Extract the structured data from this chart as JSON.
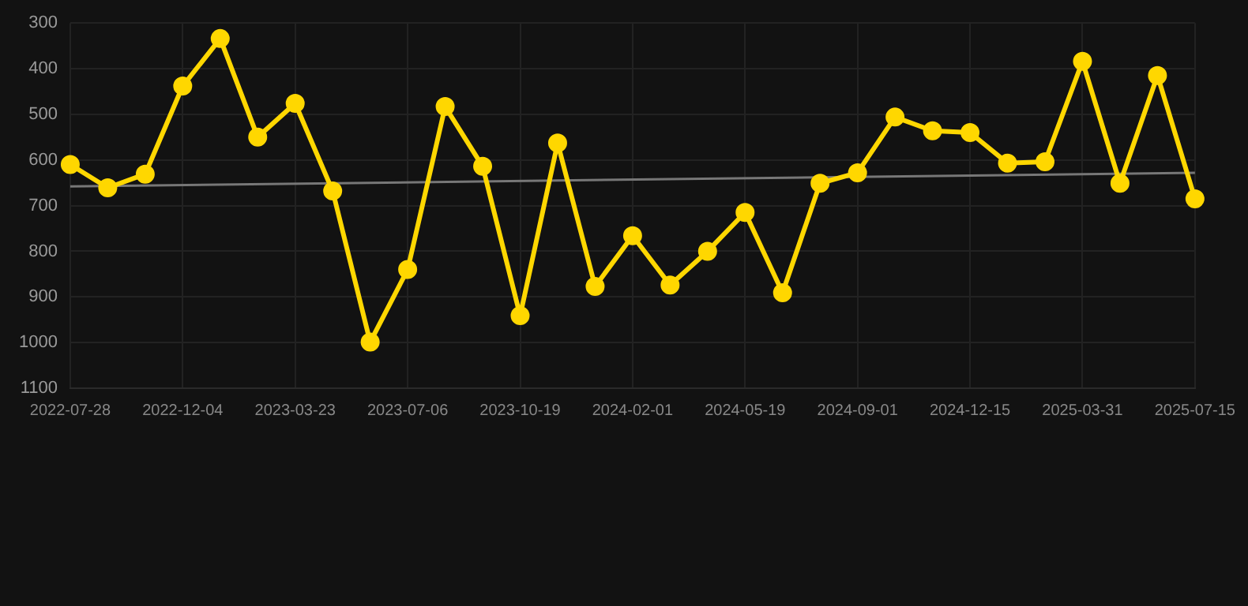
{
  "chart_data": {
    "type": "line",
    "categories": [
      "2022-07-28",
      null,
      null,
      "2022-12-04",
      null,
      null,
      "2023-03-23",
      null,
      null,
      "2023-07-06",
      null,
      null,
      "2023-10-19",
      null,
      null,
      "2024-02-01",
      null,
      null,
      "2024-05-19",
      null,
      null,
      "2024-09-01",
      null,
      null,
      "2024-12-15",
      null,
      null,
      "2025-03-31",
      null,
      null,
      "2025-07-15"
    ],
    "series": [
      {
        "color": "#ffd700",
        "values": [
          610,
          661,
          631,
          438,
          334,
          550,
          476,
          668,
          999,
          840,
          483,
          614,
          941,
          563,
          877,
          766,
          874,
          800,
          715,
          891,
          651,
          628,
          506,
          536,
          540,
          607,
          604,
          384,
          651,
          415,
          685
        ]
      },
      {
        "type": "line",
        "color": "#777777",
        "marker": "none",
        "values": [
          658,
          null,
          null,
          null,
          null,
          null,
          null,
          null,
          null,
          null,
          null,
          null,
          null,
          null,
          null,
          null,
          null,
          null,
          null,
          null,
          null,
          null,
          null,
          null,
          null,
          null,
          null,
          null,
          null,
          null,
          628
        ]
      }
    ],
    "ylim": [
      1100,
      300
    ],
    "yticks": [
      300,
      400,
      500,
      600,
      700,
      800,
      900,
      1000,
      1100
    ],
    "grid": true,
    "legend": false,
    "marker": "circle",
    "line_style": "solid"
  }
}
